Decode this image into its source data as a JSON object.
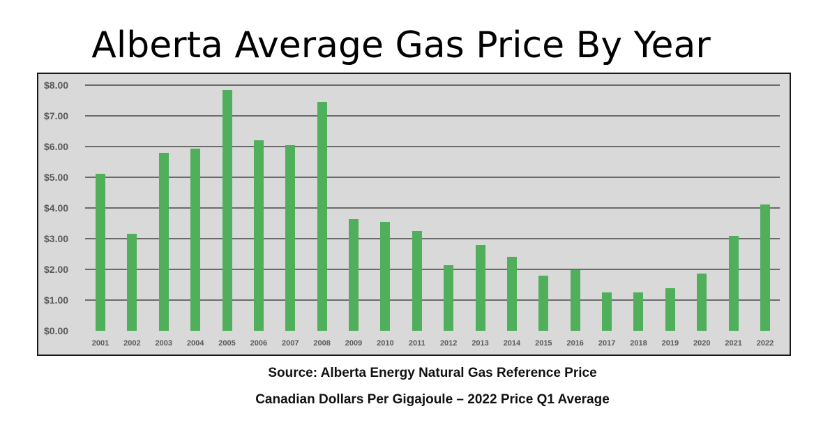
{
  "chart_data": {
    "type": "bar",
    "title": "Alberta Average Gas Price By Year",
    "xlabel": "",
    "ylabel": "",
    "categories": [
      "2001",
      "2002",
      "2003",
      "2004",
      "2005",
      "2006",
      "2007",
      "2008",
      "2009",
      "2010",
      "2011",
      "2012",
      "2013",
      "2014",
      "2015",
      "2016",
      "2017",
      "2018",
      "2019",
      "2020",
      "2021",
      "2022"
    ],
    "values": [
      5.12,
      3.16,
      5.79,
      5.94,
      7.83,
      6.2,
      6.04,
      7.45,
      3.63,
      3.54,
      3.25,
      2.13,
      2.8,
      2.42,
      1.8,
      1.98,
      1.26,
      1.26,
      1.39,
      1.86,
      3.08,
      4.11
    ],
    "ylim": [
      0,
      8
    ],
    "yticks": [
      "$0.00",
      "$1.00",
      "$2.00",
      "$3.00",
      "$4.00",
      "$5.00",
      "$6.00",
      "$7.00",
      "$8.00"
    ],
    "grid": true,
    "legend": null,
    "bar_color": "#4faf5b",
    "background_color": "#d9d9d9",
    "annotations": [
      "Source: Alberta Energy Natural Gas Reference Price",
      "Canadian Dollars Per Gigajoule – 2022 Price Q1 Average"
    ]
  },
  "page": {
    "title": "Alberta Average Gas Price By Year",
    "source": "Source: Alberta Energy Natural Gas Reference Price",
    "note": "Canadian Dollars Per Gigajoule – 2022 Price Q1 Average"
  }
}
